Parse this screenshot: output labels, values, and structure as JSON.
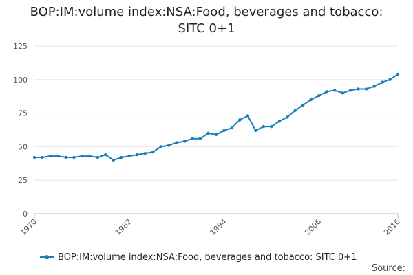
{
  "chart_data": {
    "type": "line",
    "title_line1": "BOP:IM:volume index:NSA:Food, beverages and tobacco:",
    "title_line2": "SITC 0+1",
    "xlabel": "",
    "ylabel": "",
    "xlim": [
      1970,
      2016
    ],
    "ylim": [
      0,
      125
    ],
    "yticks": [
      0,
      25,
      50,
      75,
      100,
      125
    ],
    "xticks": [
      1970,
      1982,
      1994,
      2006,
      2016
    ],
    "grid": true,
    "legend_position": "bottom",
    "series": [
      {
        "name": "BOP:IM:volume index:NSA:Food, beverages and tobacco: SITC 0+1",
        "color": "#1a7fb9",
        "x": [
          1970,
          1971,
          1972,
          1973,
          1974,
          1975,
          1976,
          1977,
          1978,
          1979,
          1980,
          1981,
          1982,
          1983,
          1984,
          1985,
          1986,
          1987,
          1988,
          1989,
          1990,
          1991,
          1992,
          1993,
          1994,
          1995,
          1996,
          1997,
          1998,
          1999,
          2000,
          2001,
          2002,
          2003,
          2004,
          2005,
          2006,
          2007,
          2008,
          2009,
          2010,
          2011,
          2012,
          2013,
          2014,
          2015,
          2016
        ],
        "values": [
          42,
          42,
          43,
          43,
          42,
          42,
          43,
          43,
          42,
          44,
          40,
          42,
          43,
          44,
          45,
          46,
          50,
          51,
          53,
          54,
          56,
          56,
          60,
          59,
          62,
          64,
          70,
          73,
          62,
          65,
          65,
          69,
          72,
          77,
          81,
          85,
          88,
          91,
          92,
          90,
          92,
          93,
          93,
          95,
          98,
          100,
          104
        ]
      }
    ],
    "source_label": "Source:"
  }
}
